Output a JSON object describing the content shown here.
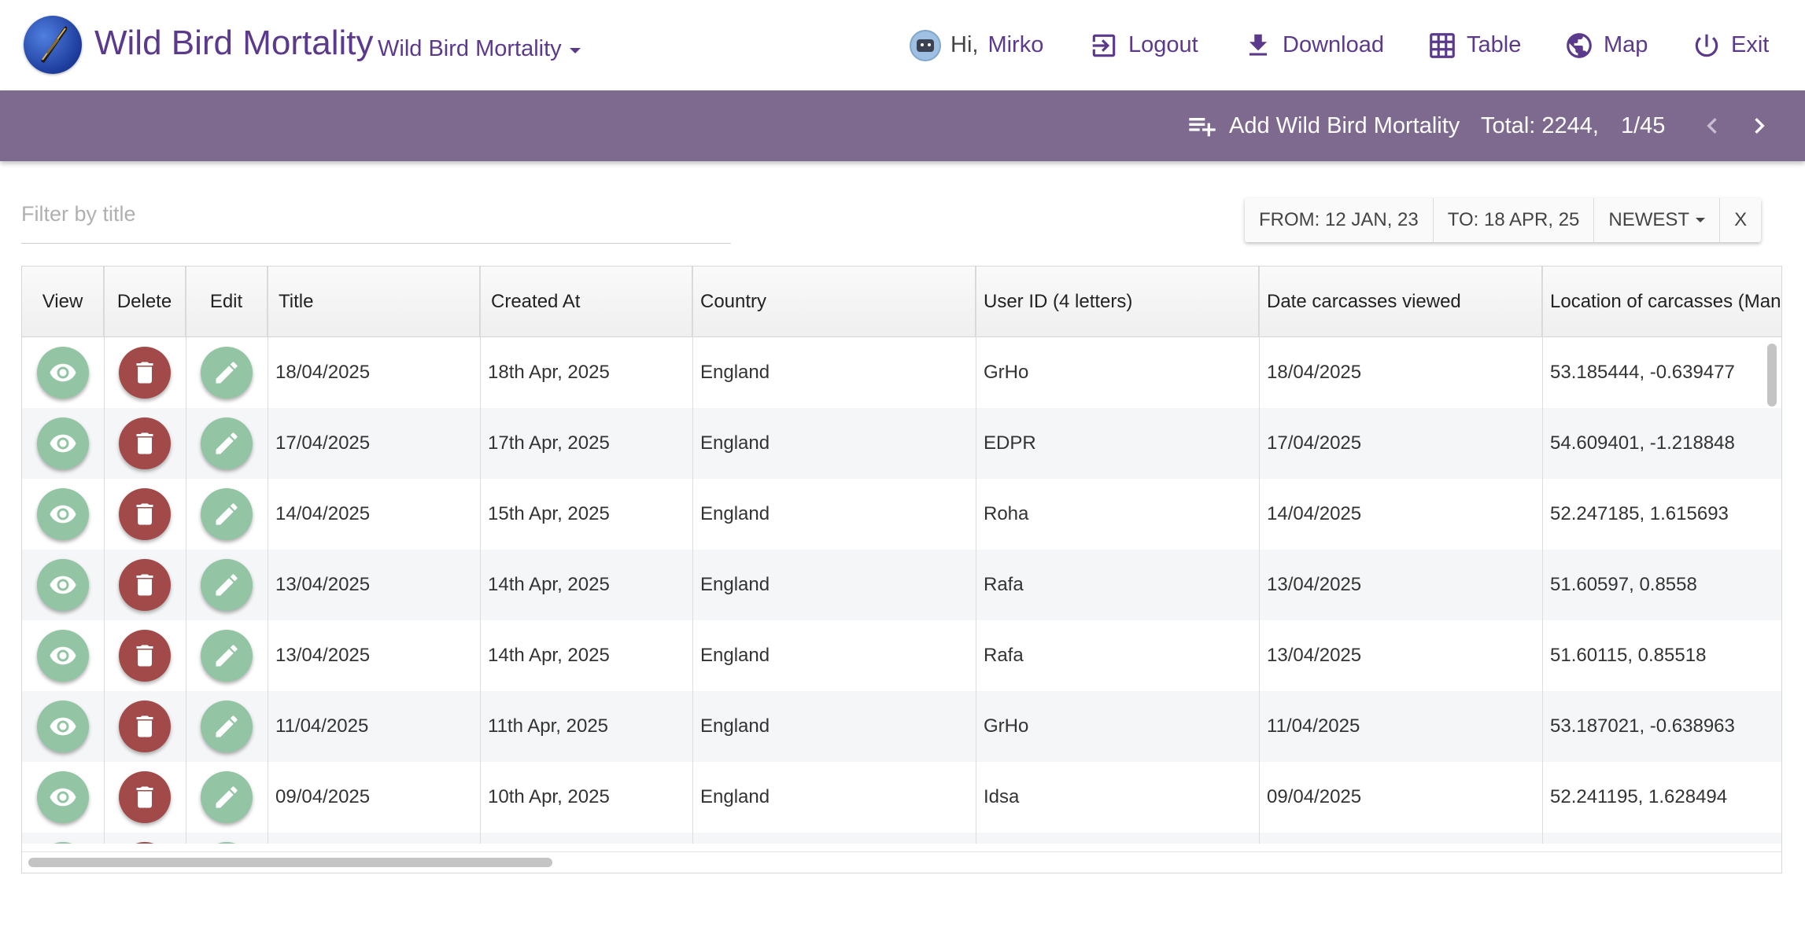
{
  "app": {
    "title": "Wild Bird Mortality",
    "dataset_selector": "Wild Bird Mortality"
  },
  "nav": {
    "greeting": "Hi,",
    "user": "Mirko",
    "logout": "Logout",
    "download": "Download",
    "table": "Table",
    "map": "Map",
    "exit": "Exit"
  },
  "toolbar": {
    "add_label": "Add Wild Bird Mortality",
    "total": "Total: 2244,",
    "page": "1/45"
  },
  "filter": {
    "placeholder": "Filter by title",
    "value": ""
  },
  "date_filter": {
    "from": "FROM: 12 JAN, 23",
    "to": "TO: 18 APR, 25",
    "sort": "NEWEST",
    "clear": "X"
  },
  "table": {
    "headers": {
      "view": "View",
      "delete": "Delete",
      "edit": "Edit",
      "title": "Title",
      "created_at": "Created At",
      "country": "Country",
      "user_id": "User ID (4 letters)",
      "date_viewed": "Date carcasses viewed",
      "location": "Location of carcasses (Mandatory)"
    },
    "rows": [
      {
        "title": "18/04/2025",
        "created_at": "18th Apr, 2025",
        "country": "England",
        "user_id": "GrHo",
        "date_viewed": "18/04/2025",
        "location": "53.185444, -0.639477"
      },
      {
        "title": "17/04/2025",
        "created_at": "17th Apr, 2025",
        "country": "England",
        "user_id": "EDPR",
        "date_viewed": "17/04/2025",
        "location": "54.609401, -1.218848"
      },
      {
        "title": "14/04/2025",
        "created_at": "15th Apr, 2025",
        "country": "England",
        "user_id": "Roha",
        "date_viewed": "14/04/2025",
        "location": "52.247185, 1.615693"
      },
      {
        "title": "13/04/2025",
        "created_at": "14th Apr, 2025",
        "country": "England",
        "user_id": "Rafa",
        "date_viewed": "13/04/2025",
        "location": "51.60597, 0.8558"
      },
      {
        "title": "13/04/2025",
        "created_at": "14th Apr, 2025",
        "country": "England",
        "user_id": "Rafa",
        "date_viewed": "13/04/2025",
        "location": "51.60115, 0.85518"
      },
      {
        "title": "11/04/2025",
        "created_at": "11th Apr, 2025",
        "country": "England",
        "user_id": "GrHo",
        "date_viewed": "11/04/2025",
        "location": "53.187021, -0.638963"
      },
      {
        "title": "09/04/2025",
        "created_at": "10th Apr, 2025",
        "country": "England",
        "user_id": "Idsa",
        "date_viewed": "09/04/2025",
        "location": "52.241195, 1.628494"
      }
    ]
  },
  "colors": {
    "brand": "#5b3a8c",
    "band": "#7e6a8f",
    "view_button": "#93c5a5",
    "delete_button": "#a24a49",
    "edit_button": "#93c5a5"
  },
  "icons": {
    "logo": "feather-logo-icon",
    "logout": "logout-icon",
    "download": "download-icon",
    "table": "table-grid-icon",
    "map": "globe-icon",
    "exit": "power-icon",
    "add": "playlist-add-icon",
    "view": "eye-icon",
    "delete": "trash-icon",
    "edit": "pencil-icon"
  }
}
